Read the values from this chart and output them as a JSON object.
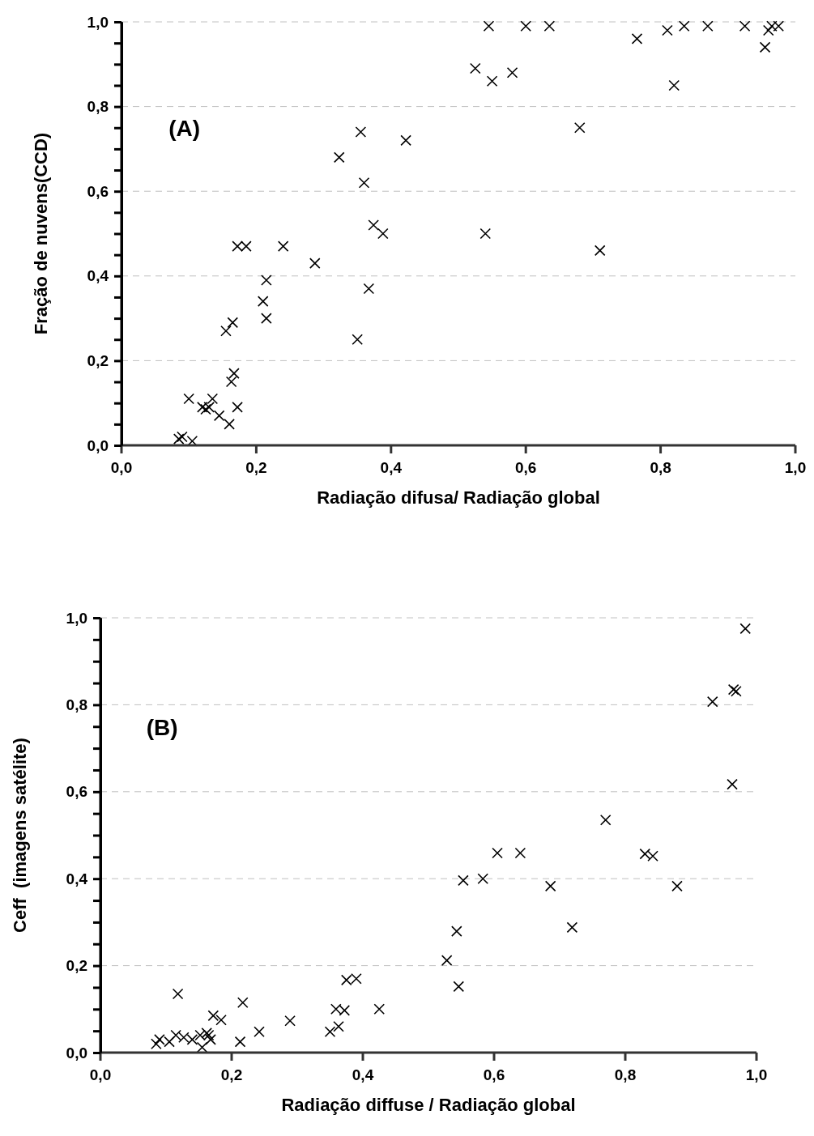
{
  "chart_data": [
    {
      "type": "scatter",
      "xlabel": "Radiação difusa/ Radiação global",
      "ylabel": "Fração de nuvens(CCD)",
      "annotations": [
        "(A)"
      ],
      "marker": "cross",
      "grid": "y",
      "xlim": [
        0,
        1
      ],
      "ylim": [
        0,
        1
      ],
      "xticks": [
        {
          "value": 0,
          "label": "0,0"
        },
        {
          "value": 0.2,
          "label": "0,2"
        },
        {
          "value": 0.4,
          "label": "0,4"
        },
        {
          "value": 0.6,
          "label": "0,6"
        },
        {
          "value": 0.8,
          "label": "0,8"
        },
        {
          "value": 1,
          "label": "1,0"
        }
      ],
      "yticks": [
        {
          "value": 0,
          "label": "0,0"
        },
        {
          "value": 0.05,
          "label": null
        },
        {
          "value": 0.1,
          "label": null
        },
        {
          "value": 0.15,
          "label": null
        },
        {
          "value": 0.2,
          "label": "0,2"
        },
        {
          "value": 0.25,
          "label": null
        },
        {
          "value": 0.3,
          "label": null
        },
        {
          "value": 0.35,
          "label": null
        },
        {
          "value": 0.4,
          "label": "0,4"
        },
        {
          "value": 0.45,
          "label": null
        },
        {
          "value": 0.5,
          "label": null
        },
        {
          "value": 0.55,
          "label": null
        },
        {
          "value": 0.6,
          "label": "0,6"
        },
        {
          "value": 0.65,
          "label": null
        },
        {
          "value": 0.7,
          "label": null
        },
        {
          "value": 0.75,
          "label": null
        },
        {
          "value": 0.8,
          "label": "0,8"
        },
        {
          "value": 0.85,
          "label": null
        },
        {
          "value": 0.9,
          "label": null
        },
        {
          "value": 0.95,
          "label": null
        },
        {
          "value": 1,
          "label": "1,0"
        }
      ],
      "series": [
        {
          "color": "#000000",
          "x": [
            0.085,
            0.09,
            0.105,
            0.1,
            0.12,
            0.125,
            0.13,
            0.135,
            0.145,
            0.16,
            0.155,
            0.165,
            0.167,
            0.163,
            0.172,
            0.172,
            0.185,
            0.215,
            0.21,
            0.215,
            0.24,
            0.287,
            0.323,
            0.35,
            0.355,
            0.36,
            0.367,
            0.374,
            0.388,
            0.422,
            0.525,
            0.54,
            0.55,
            0.545,
            0.58,
            0.6,
            0.635,
            0.68,
            0.71,
            0.765,
            0.81,
            0.835,
            0.87,
            0.925,
            0.96,
            0.965,
            0.975,
            0.955,
            0.82
          ],
          "values": [
            0.015,
            0.02,
            0.01,
            0.11,
            0.09,
            0.085,
            0.09,
            0.11,
            0.07,
            0.05,
            0.27,
            0.29,
            0.17,
            0.15,
            0.09,
            0.47,
            0.47,
            0.39,
            0.34,
            0.3,
            0.47,
            0.43,
            0.68,
            0.25,
            0.74,
            0.62,
            0.37,
            0.52,
            0.5,
            0.72,
            0.89,
            0.5,
            0.86,
            0.99,
            0.88,
            0.99,
            0.99,
            0.75,
            0.46,
            0.96,
            0.98,
            0.99,
            0.99,
            0.99,
            0.98,
            0.99,
            0.99,
            0.94,
            0.85
          ]
        }
      ]
    },
    {
      "type": "scatter",
      "xlabel": "Radiação diffuse / Radiação global",
      "ylabel": "Ceff  (imagens satélite)",
      "annotations": [
        "(B)"
      ],
      "marker": "cross",
      "grid": "y",
      "xlim": [
        0,
        1
      ],
      "ylim": [
        0,
        1
      ],
      "xticks": [
        {
          "value": 0,
          "label": "0,0"
        },
        {
          "value": 0.2,
          "label": "0,2"
        },
        {
          "value": 0.4,
          "label": "0,4"
        },
        {
          "value": 0.6,
          "label": "0,6"
        },
        {
          "value": 0.8,
          "label": "0,8"
        },
        {
          "value": 1,
          "label": "1,0"
        }
      ],
      "yticks": [
        {
          "value": 0,
          "label": "0,0"
        },
        {
          "value": 0.05,
          "label": null
        },
        {
          "value": 0.1,
          "label": null
        },
        {
          "value": 0.15,
          "label": null
        },
        {
          "value": 0.2,
          "label": "0,2"
        },
        {
          "value": 0.25,
          "label": null
        },
        {
          "value": 0.3,
          "label": null
        },
        {
          "value": 0.35,
          "label": null
        },
        {
          "value": 0.4,
          "label": "0,4"
        },
        {
          "value": 0.45,
          "label": null
        },
        {
          "value": 0.5,
          "label": null
        },
        {
          "value": 0.55,
          "label": null
        },
        {
          "value": 0.6,
          "label": "0,6"
        },
        {
          "value": 0.65,
          "label": null
        },
        {
          "value": 0.7,
          "label": null
        },
        {
          "value": 0.75,
          "label": null
        },
        {
          "value": 0.8,
          "label": "0,8"
        },
        {
          "value": 0.85,
          "label": null
        },
        {
          "value": 0.9,
          "label": null
        },
        {
          "value": 0.95,
          "label": null
        },
        {
          "value": 1,
          "label": "1,0"
        }
      ],
      "series": [
        {
          "color": "#000000",
          "x": [
            0.085,
            0.09,
            0.105,
            0.115,
            0.118,
            0.127,
            0.14,
            0.152,
            0.155,
            0.162,
            0.165,
            0.168,
            0.172,
            0.184,
            0.213,
            0.217,
            0.242,
            0.289,
            0.35,
            0.363,
            0.359,
            0.372,
            0.375,
            0.39,
            0.425,
            0.528,
            0.543,
            0.546,
            0.553,
            0.583,
            0.605,
            0.64,
            0.686,
            0.719,
            0.77,
            0.83,
            0.842,
            0.879,
            0.933,
            0.969,
            0.965,
            0.963,
            0.983
          ],
          "values": [
            0.02,
            0.03,
            0.025,
            0.04,
            0.135,
            0.035,
            0.03,
            0.04,
            0.012,
            0.045,
            0.04,
            0.03,
            0.085,
            0.075,
            0.025,
            0.115,
            0.048,
            0.073,
            0.048,
            0.06,
            0.1,
            0.097,
            0.167,
            0.17,
            0.1,
            0.212,
            0.279,
            0.152,
            0.396,
            0.4,
            0.459,
            0.459,
            0.383,
            0.288,
            0.535,
            0.457,
            0.452,
            0.383,
            0.807,
            0.831,
            0.835,
            0.617,
            0.975
          ]
        }
      ]
    }
  ]
}
